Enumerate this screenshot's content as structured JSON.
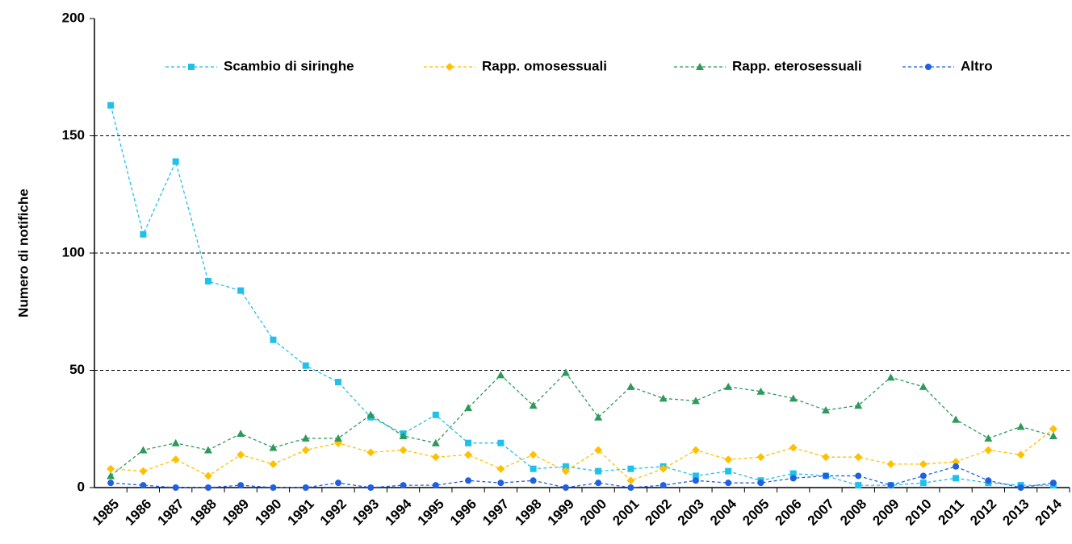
{
  "chart_data": {
    "type": "line",
    "y_label": "Numero di notifiche",
    "categories": [
      "1985",
      "1986",
      "1987",
      "1988",
      "1989",
      "1990",
      "1991",
      "1992",
      "1993",
      "1994",
      "1995",
      "1996",
      "1997",
      "1998",
      "1999",
      "2000",
      "2001",
      "2002",
      "2003",
      "2004",
      "2005",
      "2006",
      "2007",
      "2008",
      "2009",
      "2010",
      "2011",
      "2012",
      "2013",
      "2014"
    ],
    "series": [
      {
        "name": "Scambio di siringhe",
        "color": "#1fc0ea",
        "marker": "square",
        "values": [
          163,
          108,
          139,
          88,
          84,
          63,
          52,
          45,
          30,
          23,
          31,
          19,
          19,
          8,
          9,
          7,
          8,
          9,
          5,
          7,
          3,
          6,
          5,
          1,
          1,
          2,
          4,
          2,
          1,
          1
        ]
      },
      {
        "name": "Rapp. omosessuali",
        "color": "#ffc000",
        "marker": "diamond",
        "values": [
          8,
          7,
          12,
          5,
          14,
          10,
          16,
          19,
          15,
          16,
          13,
          14,
          8,
          14,
          7,
          16,
          3,
          8,
          16,
          12,
          13,
          17,
          13,
          13,
          10,
          10,
          11,
          16,
          14,
          25
        ]
      },
      {
        "name": "Rapp. eterosessuali",
        "color": "#2e9a5a",
        "marker": "triangle",
        "values": [
          5,
          16,
          19,
          16,
          23,
          17,
          21,
          21,
          31,
          22,
          19,
          34,
          48,
          35,
          49,
          30,
          43,
          38,
          37,
          43,
          41,
          38,
          33,
          35,
          47,
          43,
          29,
          21,
          26,
          22
        ]
      },
      {
        "name": "Altro",
        "color": "#2060e0",
        "marker": "circle",
        "values": [
          2,
          1,
          0,
          0,
          1,
          0,
          0,
          2,
          0,
          1,
          1,
          3,
          2,
          3,
          0,
          2,
          0,
          1,
          3,
          2,
          2,
          4,
          5,
          5,
          1,
          5,
          9,
          3,
          0,
          2
        ]
      }
    ],
    "ylim": [
      0,
      200
    ],
    "yticks": [
      0,
      50,
      100,
      150,
      200
    ],
    "grid": true
  }
}
